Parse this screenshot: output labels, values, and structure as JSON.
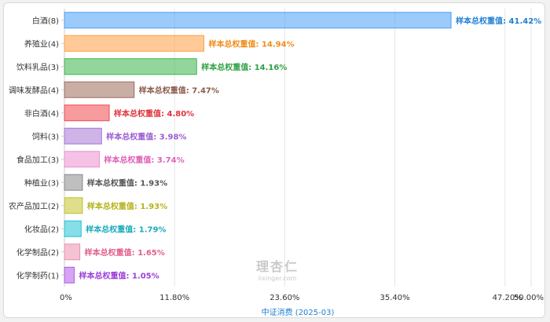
{
  "chart_data": {
    "type": "bar",
    "orientation": "horizontal",
    "categories": [
      "白酒(8)",
      "养殖业(4)",
      "饮料乳品(3)",
      "调味发酵品(4)",
      "非白酒(4)",
      "饲料(3)",
      "食品加工(3)",
      "种植业(3)",
      "农产品加工(2)",
      "化妆品(2)",
      "化学制品(2)",
      "化学制药(1)"
    ],
    "values": [
      41.42,
      14.94,
      14.16,
      7.47,
      4.8,
      3.98,
      3.74,
      1.93,
      1.93,
      1.79,
      1.65,
      1.05
    ],
    "data_labels": [
      "样本总权重值: 41.42%",
      "样本总权重值: 14.94%",
      "样本总权重值: 14.16%",
      "样本总权重值: 7.47%",
      "样本总权重值: 4.80%",
      "样本总权重值: 3.98%",
      "样本总权重值: 3.74%",
      "样本总权重值: 1.93%",
      "样本总权重值: 1.93%",
      "样本总权重值: 1.79%",
      "样本总权重值: 1.65%",
      "样本总权重值: 1.05%"
    ],
    "colors": [
      "#4a9ff5",
      "#ff9f43",
      "#3ab54a",
      "#9c6b5c",
      "#f0484f",
      "#a576d4",
      "#ec8fcf",
      "#8a8a8a",
      "#c2c22c",
      "#22c2d6",
      "#ec8faf",
      "#b259e8"
    ],
    "label_colors": [
      "#1f7fd4",
      "#f08c1a",
      "#2ea043",
      "#8a5a4a",
      "#e0333b",
      "#9a5cd0",
      "#e060b8",
      "#555555",
      "#b3b31a",
      "#1aaabd",
      "#e0608a",
      "#9a3ed8"
    ],
    "x_ticks": [
      "0%",
      "11.80%",
      "23.60%",
      "35.40%",
      "47.20%",
      "50.00%"
    ],
    "xlim": [
      0,
      50
    ],
    "xlabel": "中证消费 (2025-03)",
    "grid": true
  },
  "watermark": {
    "logo_text": "理杏仁",
    "url": "lixinger.com"
  }
}
